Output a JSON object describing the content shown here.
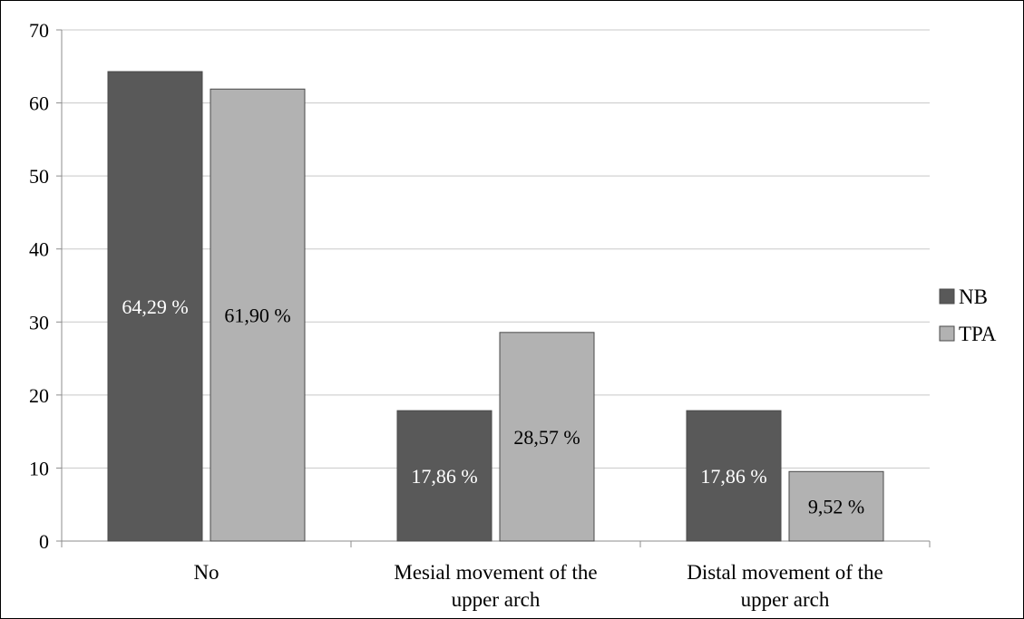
{
  "chart_data": {
    "type": "bar",
    "categories": [
      [
        "No"
      ],
      [
        "Mesial movement of the",
        "upper arch"
      ],
      [
        "Distal movement of the",
        "upper arch"
      ]
    ],
    "series": [
      {
        "name": "NB",
        "color": "#595959",
        "label_color": "#ffffff",
        "values": [
          64.29,
          17.86,
          17.86
        ],
        "labels": [
          "64,29 %",
          "17,86 %",
          "17,86 %"
        ]
      },
      {
        "name": "TPA",
        "color": "#b2b2b2",
        "label_color": "#000000",
        "values": [
          61.9,
          28.57,
          9.52
        ],
        "labels": [
          "61,90 %",
          "28,57 %",
          "9,52 %"
        ]
      }
    ],
    "ylim": [
      0,
      70
    ],
    "yticks": [
      "0",
      "10",
      "20",
      "30",
      "40",
      "50",
      "60",
      "70"
    ],
    "grid": true,
    "legend": "right",
    "title": "",
    "xlabel": "",
    "ylabel": ""
  }
}
